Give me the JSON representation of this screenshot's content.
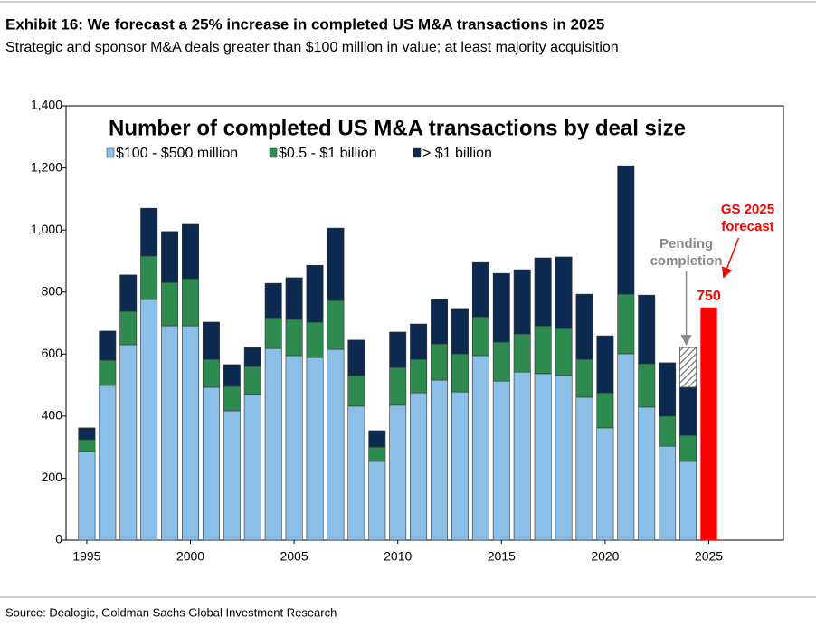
{
  "header": {
    "title": "Exhibit 16: We forecast a 25% increase in completed US M&A transactions in 2025",
    "subtitle": "Strategic and sponsor M&A deals greater than $100 million in value; at least majority acquisition"
  },
  "chart_data": {
    "type": "bar",
    "stacked": true,
    "title": "Number of completed US M&A transactions by deal size",
    "x": [
      1995,
      1996,
      1997,
      1998,
      1999,
      2000,
      2001,
      2002,
      2003,
      2004,
      2005,
      2006,
      2007,
      2008,
      2009,
      2010,
      2011,
      2012,
      2013,
      2014,
      2015,
      2016,
      2017,
      2018,
      2019,
      2020,
      2021,
      2022,
      2023,
      2024
    ],
    "series": [
      {
        "name": "$100 - $500 million",
        "color": "#8cbfe8",
        "values": [
          286,
          499,
          630,
          776,
          691,
          691,
          493,
          417,
          470,
          618,
          595,
          589,
          615,
          432,
          254,
          435,
          475,
          516,
          478,
          595,
          513,
          542,
          537,
          531,
          461,
          362,
          601,
          429,
          303,
          254
        ]
      },
      {
        "name": "$0.5 - $1 billion",
        "color": "#2e8b4f",
        "values": [
          38,
          81,
          108,
          140,
          140,
          152,
          90,
          79,
          90,
          99,
          117,
          114,
          158,
          99,
          46,
          122,
          108,
          117,
          123,
          125,
          126,
          123,
          154,
          151,
          122,
          113,
          192,
          140,
          97,
          84
        ]
      },
      {
        "name": "> $1 billion",
        "color": "#0c2a4f",
        "values": [
          38,
          94,
          117,
          154,
          164,
          175,
          120,
          70,
          61,
          111,
          134,
          183,
          233,
          114,
          53,
          114,
          114,
          143,
          146,
          175,
          221,
          207,
          219,
          231,
          210,
          184,
          414,
          221,
          172,
          155
        ]
      }
    ],
    "pending": {
      "x": 2024,
      "value": 128,
      "label": [
        "Pending",
        "completion"
      ],
      "color": "#888888"
    },
    "forecast": {
      "x": 2025,
      "value": 750,
      "value_label": "750",
      "label": [
        "GS 2025",
        "forecast"
      ],
      "color": "#ff0000"
    },
    "xlim": [
      1994,
      2028.6
    ],
    "xticks": [
      1995,
      2000,
      2005,
      2010,
      2015,
      2020,
      2025
    ],
    "ylim": [
      0,
      1400
    ],
    "yticks": [
      0,
      200,
      400,
      600,
      800,
      {
        "value": 1000,
        "label": "1,000"
      },
      {
        "value": 1200,
        "label": "1,200"
      },
      {
        "value": 1400,
        "label": "1,400"
      }
    ]
  },
  "footer": {
    "source": "Source: Dealogic, Goldman Sachs Global Investment Research"
  }
}
